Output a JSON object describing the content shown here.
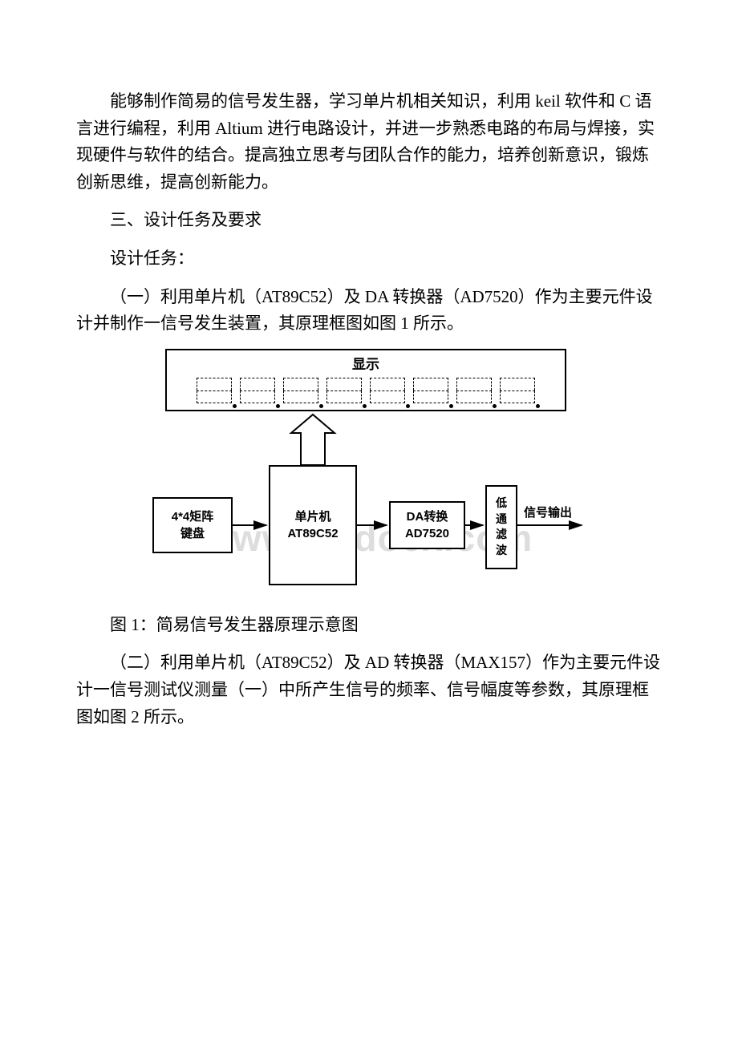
{
  "p1": "能够制作简易的信号发生器，学习单片机相关知识，利用 keil 软件和 C 语言进行编程，利用 Altium 进行电路设计，并进一步熟悉电路的布局与焊接，实现硬件与软件的结合。提高独立思考与团队合作的能力，培养创新意识，锻炼创新思维，提高创新能力。",
  "h1": "三、设计任务及要求",
  "h2": "设计任务：",
  "p2": "（一）利用单片机（AT89C52）及 DA 转换器（AD7520）作为主要元件设计并制作一信号发生装置，其原理框图如图 1 所示。",
  "diagram": {
    "display_title": "显示",
    "keypad": {
      "l1": "4*4矩阵",
      "l2": "键盘"
    },
    "mcu": {
      "l1": "单片机",
      "l2": "AT89C52"
    },
    "da": {
      "l1": "DA转换",
      "l2": "AD7520"
    },
    "lpf": {
      "c1": "低",
      "c2": "通",
      "c3": "滤",
      "c4": "波"
    },
    "out": "信号输出",
    "watermark": "www.bdocx.com",
    "seg_count": 8,
    "colors": {
      "line": "#000000",
      "box_fill": "#ffffff",
      "watermark": "#dddddd"
    }
  },
  "caption": "图 1：简易信号发生器原理示意图",
  "p3": "（二）利用单片机（AT89C52）及 AD 转换器（MAX157）作为主要元件设计一信号测试仪测量（一）中所产生信号的频率、信号幅度等参数，其原理框图如图 2 所示。"
}
